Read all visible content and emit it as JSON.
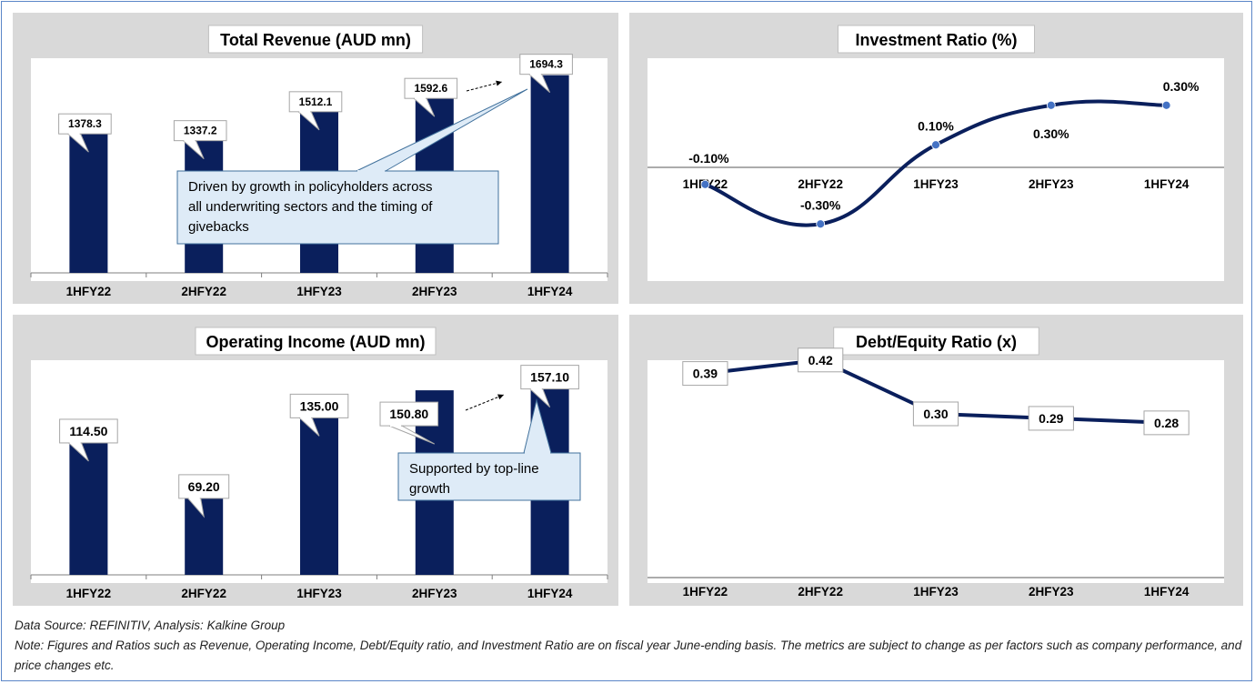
{
  "charts": [
    {
      "id": "revenue",
      "type": "bar",
      "title": "Total Revenue (AUD mn)",
      "categories": [
        "1HFY22",
        "2HFY22",
        "1HFY23",
        "2HFY23",
        "1HFY24"
      ],
      "values": [
        1378.3,
        1337.2,
        1512.1,
        1592.6,
        1694.3
      ],
      "labels": [
        "1378.3",
        "1337.2",
        "1512.1",
        "1592.6",
        "1694.3"
      ],
      "ylim": [
        500,
        1720
      ],
      "annotation": "Driven by growth in policyholders across all underwriting sectors and the timing of givebacks"
    },
    {
      "id": "investment",
      "type": "line",
      "title": "Investment Ratio (%)",
      "categories": [
        "1HFY22",
        "2HFY22",
        "1HFY23",
        "2HFY23",
        "1HFY24"
      ],
      "values": [
        -0.1,
        -0.3,
        0.1,
        0.3,
        0.3
      ],
      "labels": [
        "-0.10%",
        "-0.30%",
        "0.10%",
        "0.30%",
        "0.30%"
      ],
      "ylim": [
        -0.4,
        0.4
      ]
    },
    {
      "id": "operating",
      "type": "bar",
      "title": "Operating Income (AUD mn)",
      "categories": [
        "1HFY22",
        "2HFY22",
        "1HFY23",
        "2HFY23",
        "1HFY24"
      ],
      "values": [
        114.5,
        69.2,
        135.0,
        150.8,
        157.1
      ],
      "labels": [
        "114.50",
        "69.20",
        "135.00",
        "150.80",
        "157.10"
      ],
      "ylim": [
        0,
        165
      ],
      "annotation": "Supported by top-line growth"
    },
    {
      "id": "debt",
      "type": "line",
      "title": "Debt/Equity Ratio (x)",
      "categories": [
        "1HFY22",
        "2HFY22",
        "1HFY23",
        "2HFY23",
        "1HFY24"
      ],
      "values": [
        0.39,
        0.42,
        0.3,
        0.29,
        0.28
      ],
      "labels": [
        "0.39",
        "0.42",
        "0.30",
        "0.29",
        "0.28"
      ],
      "ylim": [
        0,
        0.45
      ]
    }
  ],
  "footer": {
    "source": "Data Source: REFINITIV, Analysis: Kalkine Group",
    "note": "Note: Figures and Ratios such as Revenue, Operating Income, Debt/Equity ratio, and Investment Ratio are on fiscal year June-ending basis. The metrics are subject to change as per factors such as company performance, and price changes etc."
  },
  "colors": {
    "bar": "#0a1f5c",
    "line": "#0a1f5c",
    "point": "#4472c4",
    "callout_fill": "#deebf7",
    "callout_border": "#41719c",
    "panel_bg": "#d9d9d9"
  }
}
